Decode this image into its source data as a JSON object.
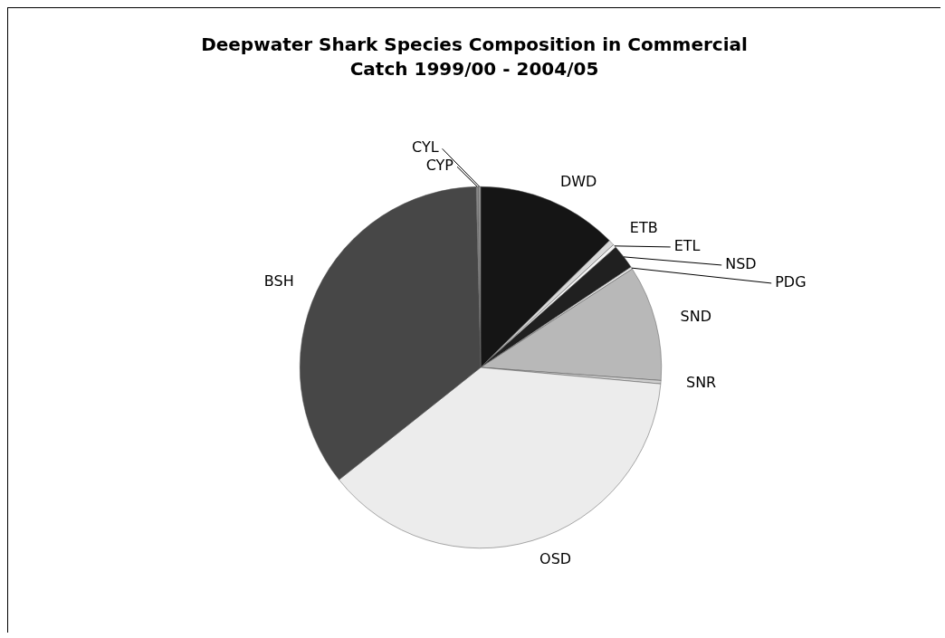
{
  "chart_data": {
    "type": "pie",
    "title": "Deepwater Shark Species Composition in Commercial\nCatch 1999/00 - 2004/05",
    "categories": [
      "DWD",
      "ETB",
      "ETL",
      "NSD",
      "PDG",
      "SND",
      "SNR",
      "OSD",
      "BSH",
      "CYP",
      "CYL"
    ],
    "values": [
      12.6,
      0.5,
      0.3,
      2.2,
      0.2,
      10.3,
      0.3,
      37.8,
      35.2,
      0.2,
      0.2
    ],
    "colors": [
      "#151515",
      "#d8d8d8",
      "#f4f4f4",
      "#202020",
      "#e8e8e8",
      "#b8b8b8",
      "#cfcfcf",
      "#ececec",
      "#474747",
      "#888888",
      "#999999"
    ]
  }
}
